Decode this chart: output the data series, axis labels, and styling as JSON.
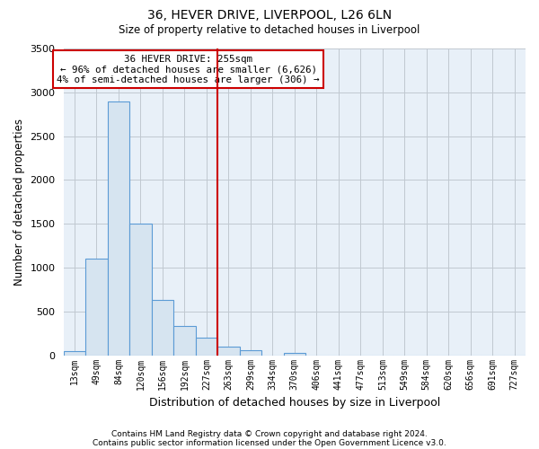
{
  "title": "36, HEVER DRIVE, LIVERPOOL, L26 6LN",
  "subtitle": "Size of property relative to detached houses in Liverpool",
  "bar_labels": [
    "13sqm",
    "49sqm",
    "84sqm",
    "120sqm",
    "156sqm",
    "192sqm",
    "227sqm",
    "263sqm",
    "299sqm",
    "334sqm",
    "370sqm",
    "406sqm",
    "441sqm",
    "477sqm",
    "513sqm",
    "549sqm",
    "584sqm",
    "620sqm",
    "656sqm",
    "691sqm",
    "727sqm"
  ],
  "bar_heights": [
    50,
    1100,
    2900,
    1500,
    630,
    330,
    200,
    100,
    60,
    0,
    30,
    0,
    0,
    0,
    0,
    0,
    0,
    0,
    0,
    0,
    0
  ],
  "bar_color": "#d6e4f0",
  "bar_edge_color": "#5b9bd5",
  "ylim": [
    0,
    3500
  ],
  "yticks": [
    0,
    500,
    1000,
    1500,
    2000,
    2500,
    3000,
    3500
  ],
  "ylabel": "Number of detached properties",
  "xlabel": "Distribution of detached houses by size in Liverpool",
  "vline_x": 6.5,
  "vline_color": "#cc0000",
  "annotation_title": "36 HEVER DRIVE: 255sqm",
  "annotation_line1": "← 96% of detached houses are smaller (6,626)",
  "annotation_line2": "4% of semi-detached houses are larger (306) →",
  "annotation_box_color": "#ffffff",
  "annotation_box_edge": "#cc0000",
  "footnote1": "Contains HM Land Registry data © Crown copyright and database right 2024.",
  "footnote2": "Contains public sector information licensed under the Open Government Licence v3.0.",
  "plot_bg_color": "#e8f0f8",
  "fig_bg_color": "#ffffff",
  "grid_color": "#c0c8d0"
}
